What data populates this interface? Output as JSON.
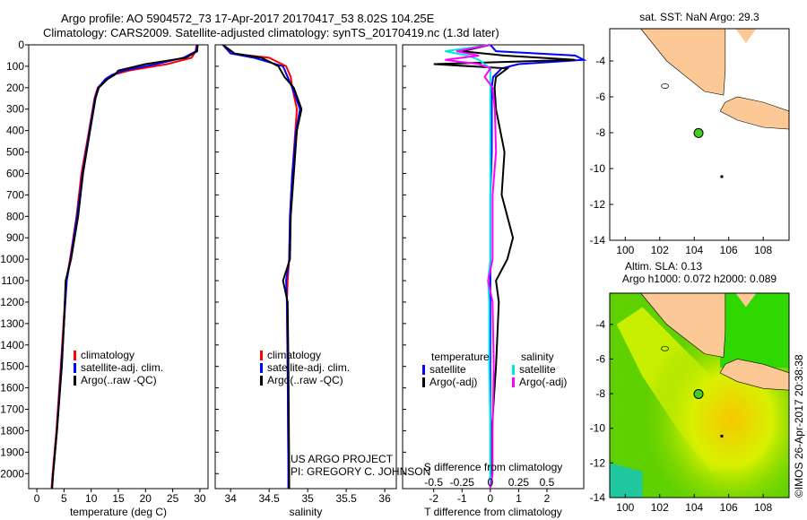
{
  "title_line1": "Argo profile: AO 5904572_73 17-Apr-2017 20170417_53 8.02S 104.25E",
  "title_line2": "Climatology: CARS2009. Satellite-adjusted climatology: synTS_20170419.nc (1.3d later)",
  "credit": "©IMOS 26-Apr-2017 20:38:38",
  "project_line1": "US ARGO PROJECT",
  "project_line2": "PI: GREGORY C. JOHNSON",
  "colors": {
    "climatology": "#ff0000",
    "satellite": "#0000ff",
    "argo": "#000000",
    "sal_sat": "#00e5e5",
    "sal_argo": "#ff00ff",
    "land": "#fcc896"
  },
  "chart_data": [
    {
      "type": "line",
      "name": "temperature",
      "xlabel": "temperature (deg C)",
      "ylabel": "",
      "xlim": [
        -1.5,
        31.5
      ],
      "ylim": [
        2070,
        0
      ],
      "xticks": [
        "0",
        "5",
        "10",
        "15",
        "20",
        "25",
        "30"
      ],
      "xtickvals": [
        0,
        5,
        10,
        15,
        20,
        25,
        30
      ],
      "yticks": [
        0,
        100,
        200,
        300,
        400,
        500,
        600,
        700,
        800,
        900,
        1000,
        1100,
        1200,
        1300,
        1400,
        1500,
        1600,
        1700,
        1800,
        1900,
        2000
      ],
      "legend": [
        "climatology",
        "satellite-adj. clim.",
        "Argo(..raw -QC)"
      ],
      "depth": [
        0,
        30,
        60,
        90,
        120,
        140,
        160,
        200,
        250,
        400,
        600,
        800,
        1000,
        1100,
        1300,
        1500,
        1800,
        2000,
        2070
      ],
      "series": [
        {
          "name": "climatology",
          "values": [
            29.4,
            29.2,
            28.5,
            24,
            17,
            14,
            12.8,
            11.2,
            10.6,
            9.6,
            8.2,
            7.3,
            6.1,
            5.4,
            4.9,
            4.4,
            3.6,
            2.9,
            2.7
          ]
        },
        {
          "name": "satellite-adj. clim.",
          "values": [
            29.5,
            29.3,
            27,
            22,
            16,
            13.8,
            12.6,
            11.3,
            10.7,
            9.7,
            8.4,
            7.4,
            6.2,
            5.5,
            5,
            4.5,
            3.7,
            3,
            2.8
          ]
        },
        {
          "name": "Argo(..raw -QC)",
          "values": [
            29.6,
            29.5,
            27.5,
            20,
            15,
            14.3,
            13,
            11.4,
            10.8,
            9.8,
            8.5,
            7.6,
            6.3,
            5.3,
            5,
            4.6,
            3.7,
            3,
            2.8
          ]
        }
      ]
    },
    {
      "type": "line",
      "name": "salinity",
      "xlabel": "salinity",
      "xlim": [
        33.8,
        36.15
      ],
      "ylim": [
        2070,
        0
      ],
      "xticks": [
        "34",
        "34.5",
        "35",
        "35.5",
        "36"
      ],
      "xtickvals": [
        34,
        34.5,
        35,
        35.5,
        36
      ],
      "legend": [
        "climatology",
        "satellite-adj. clim.",
        "Argo(..raw -QC)"
      ],
      "depth": [
        0,
        40,
        60,
        100,
        150,
        200,
        300,
        400,
        600,
        800,
        1000,
        1100,
        1200,
        1500,
        2000,
        2070
      ],
      "series": [
        {
          "name": "climatology",
          "values": [
            33.9,
            34.0,
            34.5,
            34.72,
            34.78,
            34.8,
            34.86,
            34.84,
            34.8,
            34.77,
            34.76,
            34.74,
            34.73,
            34.74,
            34.75,
            34.75
          ]
        },
        {
          "name": "satellite-adj. clim.",
          "values": [
            33.9,
            34.0,
            34.3,
            34.68,
            34.74,
            34.8,
            34.9,
            34.85,
            34.8,
            34.77,
            34.76,
            34.72,
            34.73,
            34.74,
            34.75,
            34.75
          ]
        },
        {
          "name": "Argo(..raw -QC)",
          "values": [
            33.9,
            34.05,
            34.4,
            34.62,
            34.7,
            34.82,
            34.92,
            34.86,
            34.82,
            34.78,
            34.77,
            34.68,
            34.74,
            34.75,
            34.76,
            34.76
          ]
        }
      ]
    },
    {
      "type": "line",
      "name": "difference",
      "xlabel": "T difference from climatology",
      "x2label": "S difference from climatology",
      "xlim": [
        -3.1,
        3.3
      ],
      "ylim": [
        2070,
        0
      ],
      "xticks": [
        "-2",
        "-1",
        "0",
        "1",
        "2"
      ],
      "xtickvals": [
        -2,
        -1,
        0,
        1,
        2
      ],
      "x2ticks": [
        "-0.5",
        "-0.25",
        "0",
        "0.25",
        "0.5"
      ],
      "x2tickvals": [
        -0.5,
        -0.25,
        0,
        0.25,
        0.5
      ],
      "legend_headers": [
        "temperature",
        "salinity"
      ],
      "legend": [
        "satellite",
        "Argo(-adj)",
        "satellite",
        "Argo(-adj)"
      ],
      "depth": [
        0,
        30,
        50,
        70,
        90,
        110,
        150,
        200,
        300,
        500,
        700,
        900,
        1000,
        1100,
        1200,
        1500,
        1800,
        2000,
        2070
      ],
      "series": [
        {
          "name": "T satellite",
          "values": [
            0,
            0.2,
            3,
            3.3,
            1,
            0.4,
            0.1,
            0.05,
            0.05,
            0.05,
            0,
            0,
            0,
            0,
            0,
            0,
            0,
            0,
            0
          ]
        },
        {
          "name": "T Argo(-adj)",
          "values": [
            0,
            -1,
            0.5,
            3,
            -2,
            0.6,
            0.2,
            0.15,
            0.2,
            0.5,
            0.4,
            0.8,
            0.6,
            0.2,
            0.3,
            0.2,
            0.05,
            0.05,
            0
          ]
        },
        {
          "name": "S satellite",
          "values": [
            0,
            -0.4,
            -0.2,
            -0.1,
            -0.05,
            0,
            0,
            0,
            0,
            0,
            0,
            0,
            0,
            -0.02,
            -0.01,
            -0.01,
            0,
            0,
            0
          ]
        },
        {
          "name": "S Argo(-adj)",
          "values": [
            0,
            -0.3,
            -0.1,
            -0.4,
            -0.1,
            0,
            -0.05,
            0.02,
            0.04,
            0.05,
            0.02,
            0.02,
            0.02,
            -0.02,
            0.02,
            0.03,
            0.02,
            0.02,
            0
          ]
        }
      ]
    },
    {
      "type": "map",
      "name": "sst",
      "title": "sat. SST: NaN Argo: 29.3",
      "xticks": [
        "100",
        "102",
        "104",
        "106",
        "108"
      ],
      "yticks": [
        "-4",
        "-6",
        "-8",
        "-10",
        "-12",
        "-14"
      ],
      "argo_position": [
        104.25,
        -8.02
      ]
    },
    {
      "type": "heatmap",
      "name": "sla",
      "title_line1": "Altim. SLA: 0.13",
      "title_line2": "Argo h1000: 0.072 h2000: 0.089",
      "xticks": [
        "100",
        "102",
        "104",
        "106",
        "108"
      ],
      "yticks": [
        "-4",
        "-6",
        "-8",
        "-10",
        "-12",
        "-14"
      ],
      "argo_position": [
        104.25,
        -8.02
      ]
    }
  ]
}
